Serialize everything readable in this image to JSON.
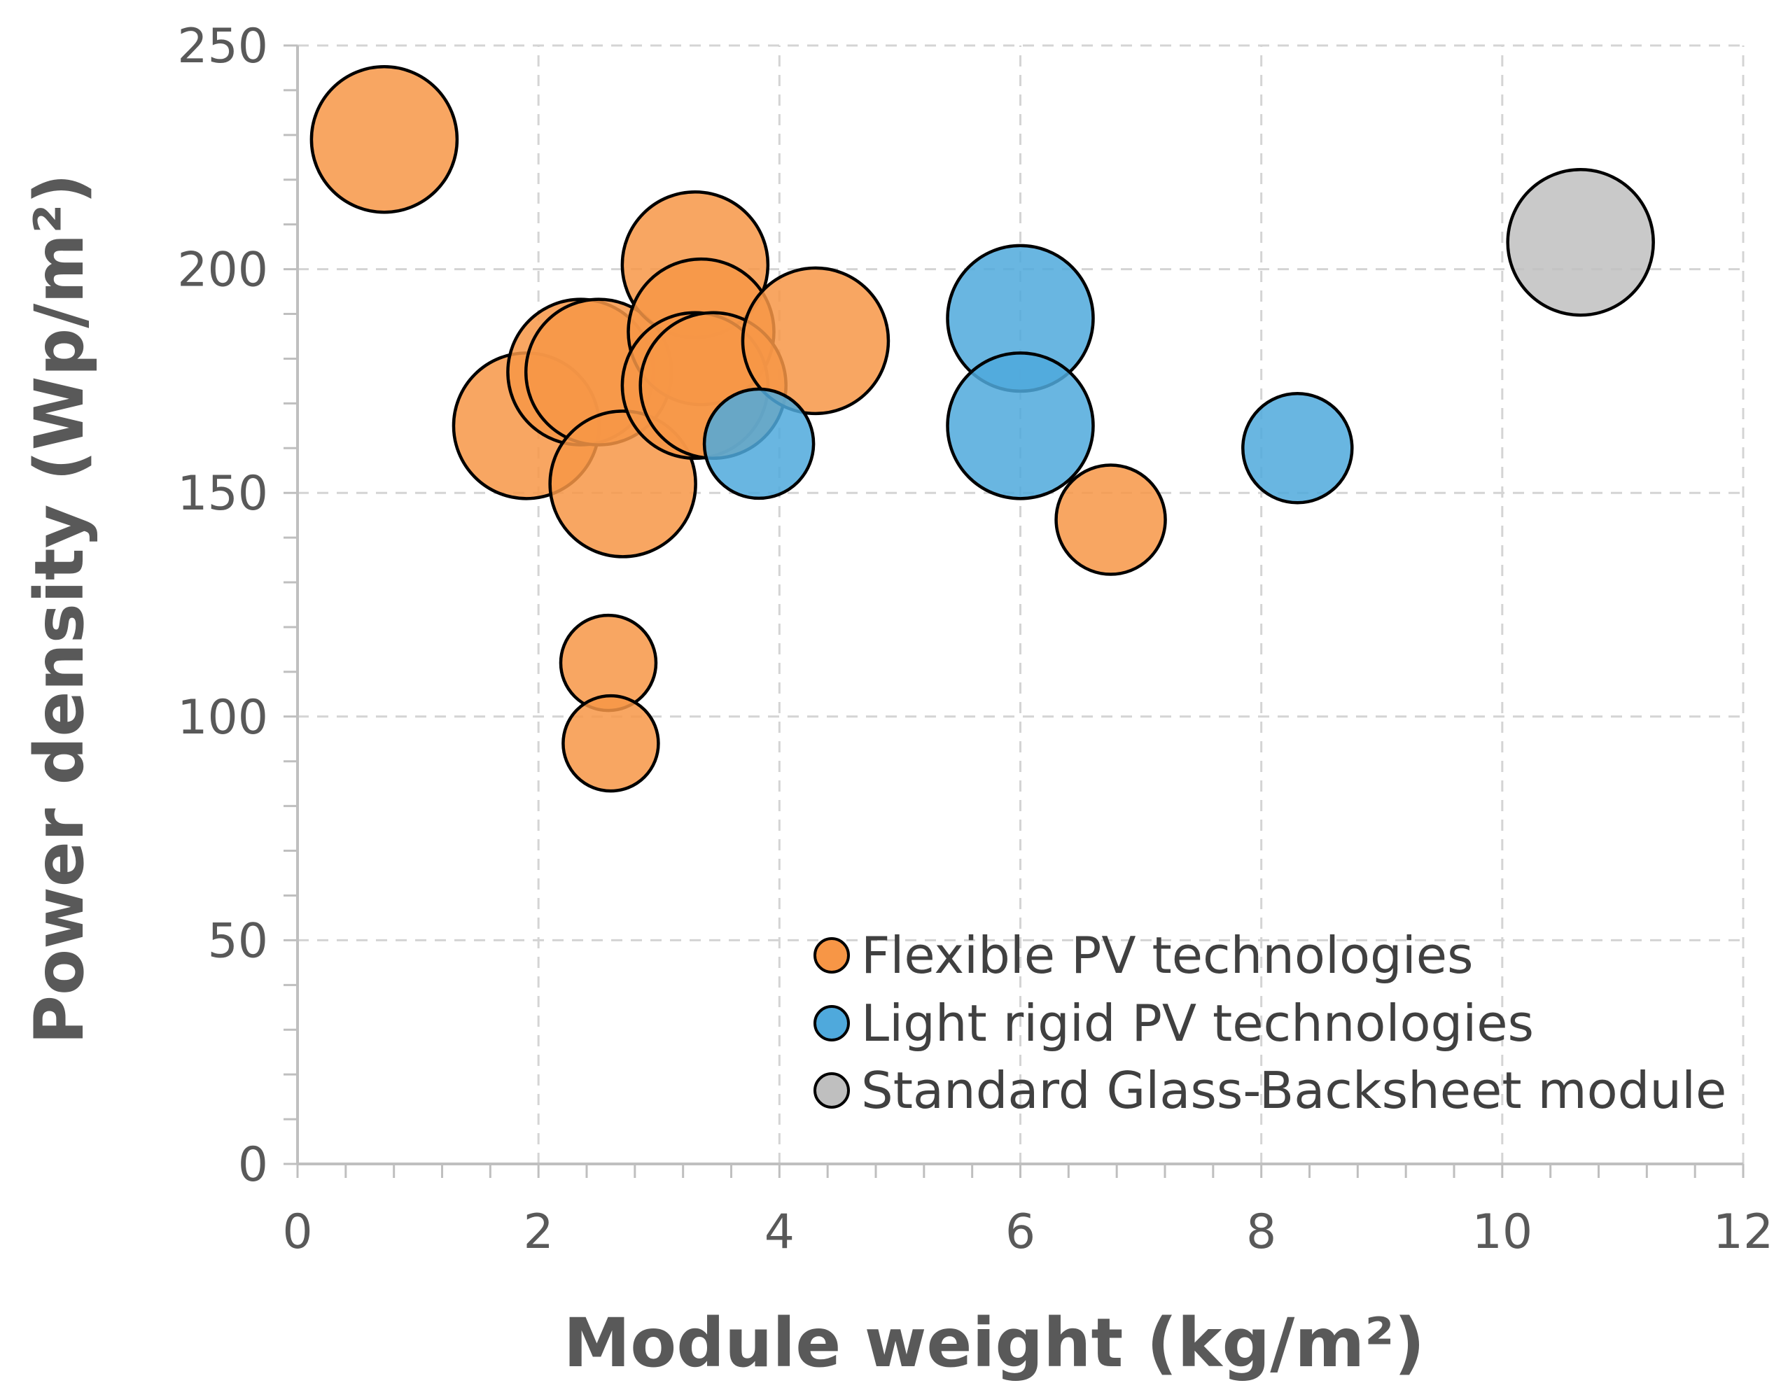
{
  "chart_data": {
    "type": "scatter",
    "title": "",
    "xlabel": "Module weight (kg/m²)",
    "ylabel": "Power density (Wp/m²)",
    "xlim": [
      0,
      12
    ],
    "ylim": [
      0,
      250
    ],
    "x_ticks": [
      "0",
      "2",
      "4",
      "6",
      "8",
      "10",
      "12"
    ],
    "y_ticks": [
      "0",
      "50",
      "100",
      "150",
      "200",
      "250"
    ],
    "grid": true,
    "legend_position": "bottom-right",
    "series": [
      {
        "name": "Flexible PV technologies",
        "color": "#f79646",
        "points": [
          {
            "x": 0.72,
            "y": 229,
            "size": "large"
          },
          {
            "x": 1.9,
            "y": 165,
            "size": "large"
          },
          {
            "x": 2.35,
            "y": 177,
            "size": "large"
          },
          {
            "x": 2.5,
            "y": 177,
            "size": "large"
          },
          {
            "x": 2.7,
            "y": 152,
            "size": "large"
          },
          {
            "x": 2.58,
            "y": 112,
            "size": "small"
          },
          {
            "x": 2.6,
            "y": 94,
            "size": "small"
          },
          {
            "x": 3.3,
            "y": 201,
            "size": "large"
          },
          {
            "x": 3.35,
            "y": 186,
            "size": "large"
          },
          {
            "x": 3.3,
            "y": 174,
            "size": "large"
          },
          {
            "x": 3.45,
            "y": 174,
            "size": "large"
          },
          {
            "x": 4.3,
            "y": 184,
            "size": "large"
          },
          {
            "x": 6.75,
            "y": 144,
            "size": "medium"
          }
        ]
      },
      {
        "name": "Light rigid PV technologies",
        "color": "#4fa9dc",
        "points": [
          {
            "x": 3.83,
            "y": 161,
            "size": "medium"
          },
          {
            "x": 6.0,
            "y": 189,
            "size": "large"
          },
          {
            "x": 6.0,
            "y": 165,
            "size": "large"
          },
          {
            "x": 8.3,
            "y": 160,
            "size": "medium"
          }
        ]
      },
      {
        "name": "Standard Glass-Backsheet module",
        "color": "#bfbfbf",
        "points": [
          {
            "x": 10.65,
            "y": 206,
            "size": "large"
          }
        ]
      }
    ]
  }
}
